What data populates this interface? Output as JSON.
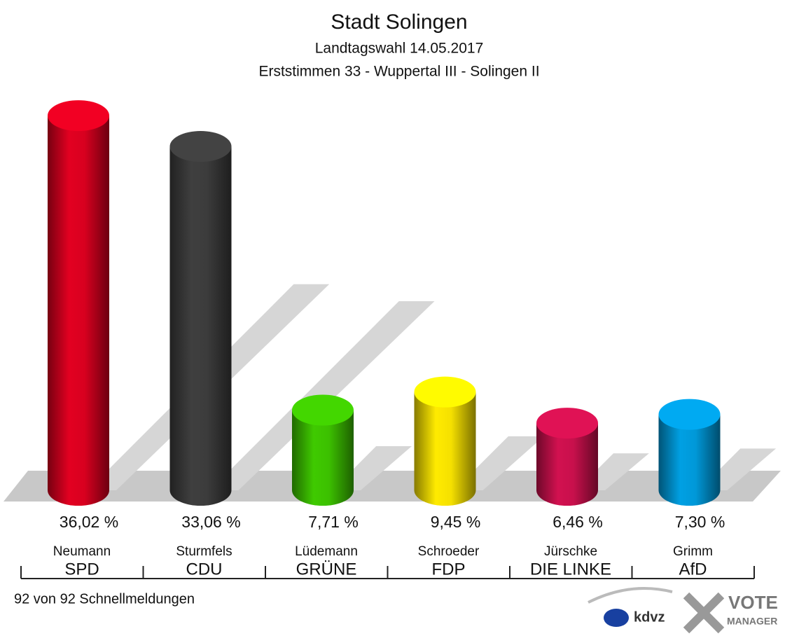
{
  "chart_data": {
    "type": "bar",
    "title": "Stadt Solingen",
    "subtitle": "Landtagswahl 14.05.2017",
    "subtitle2": "Erststimmen 33 - Wuppertal III - Solingen II",
    "categories": [
      "Neumann",
      "Sturmfels",
      "Lüdemann",
      "Schroeder",
      "Jürschke",
      "Grimm"
    ],
    "parties": [
      "SPD",
      "CDU",
      "GRÜNE",
      "FDP",
      "DIE LINKE",
      "AfD"
    ],
    "values": [
      36.02,
      33.06,
      7.71,
      9.45,
      6.46,
      7.3
    ],
    "value_labels": [
      "36,02 %",
      "33,06 %",
      "7,71 %",
      "9,45 %",
      "6,46 %",
      "7,30 %"
    ],
    "colors": [
      "#d8001f",
      "#3c3c3c",
      "#3cc000",
      "#f5e000",
      "#c8104c",
      "#0098d8"
    ],
    "footnote": "92 von 92 Schnellmeldungen",
    "logo": {
      "brand": "kdvz",
      "name": "VOTE",
      "name2": "MANAGER"
    }
  }
}
